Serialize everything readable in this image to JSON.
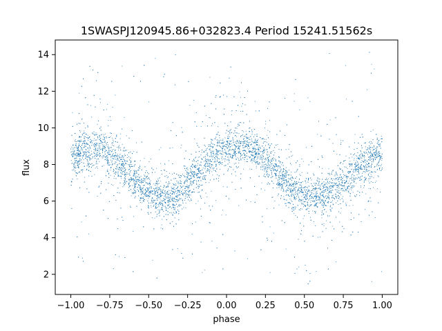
{
  "chart_data": {
    "type": "scatter",
    "title": "1SWASPJ120945.86+032823.4 Period 15241.51562s",
    "xlabel": "phase",
    "ylabel": "flux",
    "xlim": [
      -1.1,
      1.1
    ],
    "ylim": [
      0.9,
      14.8
    ],
    "xticks": [
      -1.0,
      -0.75,
      -0.5,
      -0.25,
      0.0,
      0.25,
      0.5,
      0.75,
      1.0
    ],
    "xtick_labels": [
      "−1.00",
      "−0.75",
      "−0.50",
      "−0.25",
      "0.00",
      "0.25",
      "0.50",
      "0.75",
      "1.00"
    ],
    "yticks": [
      2,
      4,
      6,
      8,
      10,
      12,
      14
    ],
    "ytick_labels": [
      "2",
      "4",
      "6",
      "8",
      "10",
      "12",
      "14"
    ],
    "grid": false,
    "legend": "none",
    "marker_color": "#1f77b4",
    "series": [
      {
        "x": [
          -1.0,
          -0.95,
          -0.9,
          -0.85,
          -0.8,
          -0.75,
          -0.7,
          -0.65,
          -0.6,
          -0.55,
          -0.5,
          -0.45,
          -0.4,
          -0.35,
          -0.3,
          -0.25,
          -0.2,
          -0.15,
          -0.1,
          -0.05,
          0.0,
          0.05,
          0.1,
          0.15,
          0.2,
          0.25,
          0.3,
          0.35,
          0.4,
          0.45,
          0.5,
          0.55,
          0.6,
          0.65,
          0.7,
          0.75,
          0.8,
          0.85,
          0.9,
          0.95,
          1.0
        ],
        "y": [
          8.4,
          8.65,
          8.8,
          8.85,
          8.8,
          8.6,
          8.3,
          7.8,
          7.3,
          6.8,
          6.5,
          6.3,
          6.2,
          6.3,
          6.5,
          6.9,
          7.4,
          7.9,
          8.3,
          8.6,
          8.8,
          8.9,
          8.95,
          8.85,
          8.6,
          8.3,
          7.9,
          7.4,
          6.9,
          6.5,
          6.3,
          6.2,
          6.25,
          6.4,
          6.7,
          7.0,
          7.4,
          7.8,
          8.1,
          8.4,
          8.5
        ]
      }
    ]
  }
}
